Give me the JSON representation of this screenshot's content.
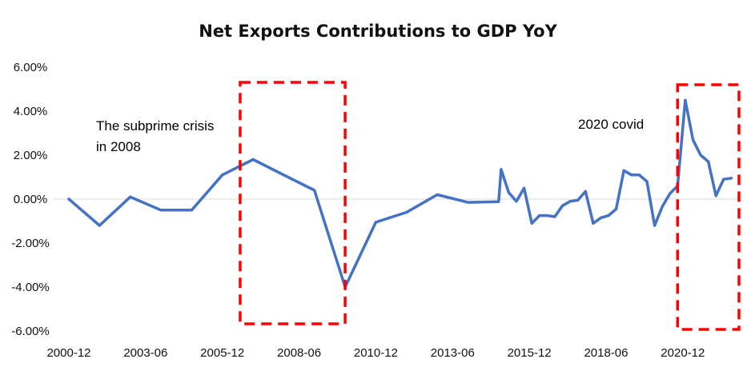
{
  "chart_data": {
    "type": "line",
    "title": "Net Exports Contributions to GDP YoY",
    "xlabel": "",
    "ylabel": "",
    "ylim": [
      -6,
      6
    ],
    "x_ticks": [
      "2000-12",
      "2003-06",
      "2005-12",
      "2008-06",
      "2010-12",
      "2013-06",
      "2015-12",
      "2018-06",
      "2020-12"
    ],
    "y_ticks": [
      "6.00%",
      "4.00%",
      "2.00%",
      "0.00%",
      "-2.00%",
      "-4.00%",
      "-6.00%"
    ],
    "y_tick_values": [
      6,
      4,
      2,
      0,
      -2,
      -4,
      -6
    ],
    "x_tick_years": [
      2000.92,
      2003.42,
      2005.92,
      2008.42,
      2010.92,
      2013.42,
      2015.92,
      2018.42,
      2020.92
    ],
    "x_range": [
      2000.92,
      2022.75
    ],
    "series": [
      {
        "name": "Net Exports Contributions to GDP YoY",
        "color": "#4472C4",
        "x": [
          2000.92,
          2001.92,
          2002.92,
          2003.92,
          2004.92,
          2005.92,
          2006.92,
          2007.92,
          2008.92,
          2009.92,
          2010.92,
          2011.92,
          2012.92,
          2013.92,
          2014.92,
          2015.0,
          2015.25,
          2015.5,
          2015.75,
          2016.0,
          2016.25,
          2016.5,
          2016.75,
          2017.0,
          2017.25,
          2017.5,
          2017.75,
          2018.0,
          2018.25,
          2018.5,
          2018.75,
          2019.0,
          2019.25,
          2019.5,
          2019.75,
          2020.0,
          2020.25,
          2020.5,
          2020.75,
          2021.0,
          2021.25,
          2021.5,
          2021.75,
          2022.0,
          2022.25,
          2022.5
        ],
        "values": [
          0.0,
          -1.2,
          0.1,
          -0.5,
          -0.5,
          1.1,
          1.8,
          1.1,
          0.4,
          -4.0,
          -1.05,
          -0.6,
          0.2,
          -0.15,
          -0.12,
          1.35,
          0.3,
          -0.1,
          0.5,
          -1.1,
          -0.75,
          -0.75,
          -0.8,
          -0.3,
          -0.1,
          -0.05,
          0.35,
          -1.1,
          -0.85,
          -0.75,
          -0.45,
          1.3,
          1.1,
          1.1,
          0.8,
          -1.2,
          -0.35,
          0.25,
          0.6,
          4.5,
          2.7,
          2.0,
          1.7,
          0.15,
          0.9,
          0.95
        ]
      }
    ],
    "annotations": [
      {
        "text": "The subprime crisis",
        "line2": "in 2008",
        "period": [
          2006.5,
          2009.92
        ]
      },
      {
        "text": "2020 covid",
        "period": [
          2020.75,
          2022.75
        ]
      }
    ],
    "grid": false,
    "legend": "none"
  }
}
